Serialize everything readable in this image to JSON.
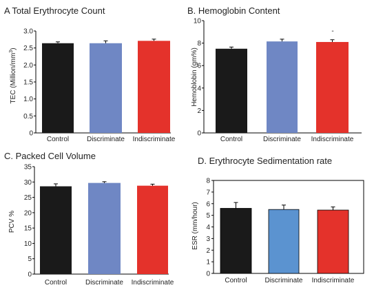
{
  "chart_data": [
    {
      "type": "bar",
      "title": "A Total Erythrocyte Count",
      "ylabel": "TEC (Million/mm3)",
      "ylabel_main": "TEC (Million/mm",
      "ylabel_sup": "3",
      "ylabel_tail": ")",
      "categories": [
        "Control",
        "Discriminate",
        "Indiscriminate"
      ],
      "values": [
        2.64,
        2.64,
        2.71
      ],
      "errors": [
        0.04,
        0.07,
        0.05
      ],
      "colors": [
        "#1a1a1a",
        "#6f87c4",
        "#e4322b"
      ],
      "ylim": [
        0,
        3.0
      ],
      "yticks": [
        "0",
        "0.5",
        "1.0",
        "1.5",
        "2.0",
        "2.5",
        "3.0"
      ],
      "ytick_values": [
        0,
        0.5,
        1.0,
        1.5,
        2.0,
        2.5,
        3.0
      ],
      "annotations": []
    },
    {
      "type": "bar",
      "title": "B.  Hemoglobin Content",
      "ylabel": "Hemoblobin (gm%)",
      "categories": [
        "Control",
        "Discriminate",
        "Indiscriminate"
      ],
      "values": [
        7.5,
        8.15,
        8.1
      ],
      "errors": [
        0.15,
        0.2,
        0.2
      ],
      "colors": [
        "#1a1a1a",
        "#6f87c4",
        "#e4322b"
      ],
      "ylim": [
        0,
        10
      ],
      "yticks": [
        "0",
        "2",
        "4",
        "6",
        "8",
        "10"
      ],
      "ytick_values": [
        0,
        2,
        4,
        6,
        8,
        10
      ],
      "annotations": [
        "-"
      ]
    },
    {
      "type": "bar",
      "title": "C. Packed Cell Volume",
      "ylabel": "PCV %",
      "categories": [
        "Control",
        "Discriminate",
        "Indiscriminate"
      ],
      "values": [
        28.6,
        29.7,
        28.8
      ],
      "errors": [
        0.8,
        0.4,
        0.5
      ],
      "colors": [
        "#1a1a1a",
        "#6f87c4",
        "#e4322b"
      ],
      "ylim": [
        0,
        35
      ],
      "yticks": [
        "0",
        "5",
        "10",
        "15",
        "20",
        "25",
        "30",
        "35"
      ],
      "ytick_values": [
        0,
        5,
        10,
        15,
        20,
        25,
        30,
        35
      ],
      "annotations": []
    },
    {
      "type": "bar",
      "title": "D.  Erythrocyte Sedimentation rate",
      "ylabel": "ESR (mm/hour)",
      "categories": [
        "Control",
        "Discriminate",
        "Indiscriminate"
      ],
      "values": [
        5.6,
        5.5,
        5.45
      ],
      "errors": [
        0.5,
        0.38,
        0.27
      ],
      "colors": [
        "#1a1a1a",
        "#5b93d0",
        "#e4322b"
      ],
      "ylim": [
        0,
        8
      ],
      "yticks": [
        "0",
        "1",
        "2",
        "3",
        "4",
        "5",
        "6",
        "7",
        "8"
      ],
      "ytick_values": [
        0,
        1,
        2,
        3,
        4,
        5,
        6,
        7,
        8
      ],
      "annotations": []
    }
  ]
}
